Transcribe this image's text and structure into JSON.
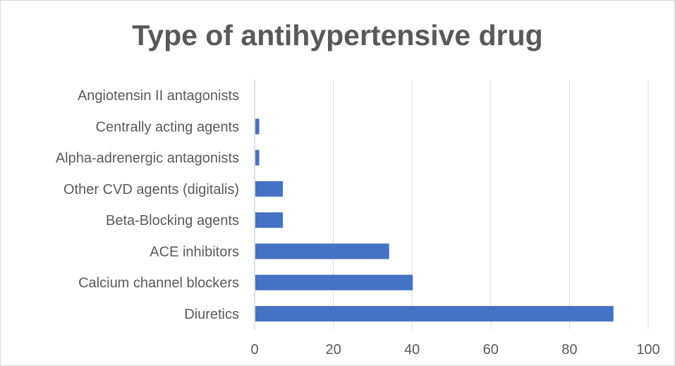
{
  "chart_data": {
    "type": "bar",
    "orientation": "horizontal",
    "title": "Type of antihypertensive drug",
    "xlabel": "",
    "ylabel": "",
    "categories": [
      "Angiotensin II antagonists",
      "Centrally acting agents",
      "Alpha-adrenergic antagonists",
      "Other CVD agents (digitalis)",
      "Beta-Blocking agents",
      "ACE inhibitors",
      "Calcium channel blockers",
      "Diuretics"
    ],
    "values": [
      0,
      1,
      1,
      7,
      7,
      34,
      40,
      91
    ],
    "xlim": [
      0,
      100
    ],
    "xticks": [
      0,
      20,
      40,
      60,
      80,
      100
    ],
    "grid": "vertical",
    "legend": "none",
    "bar_color": "#4472c4"
  }
}
